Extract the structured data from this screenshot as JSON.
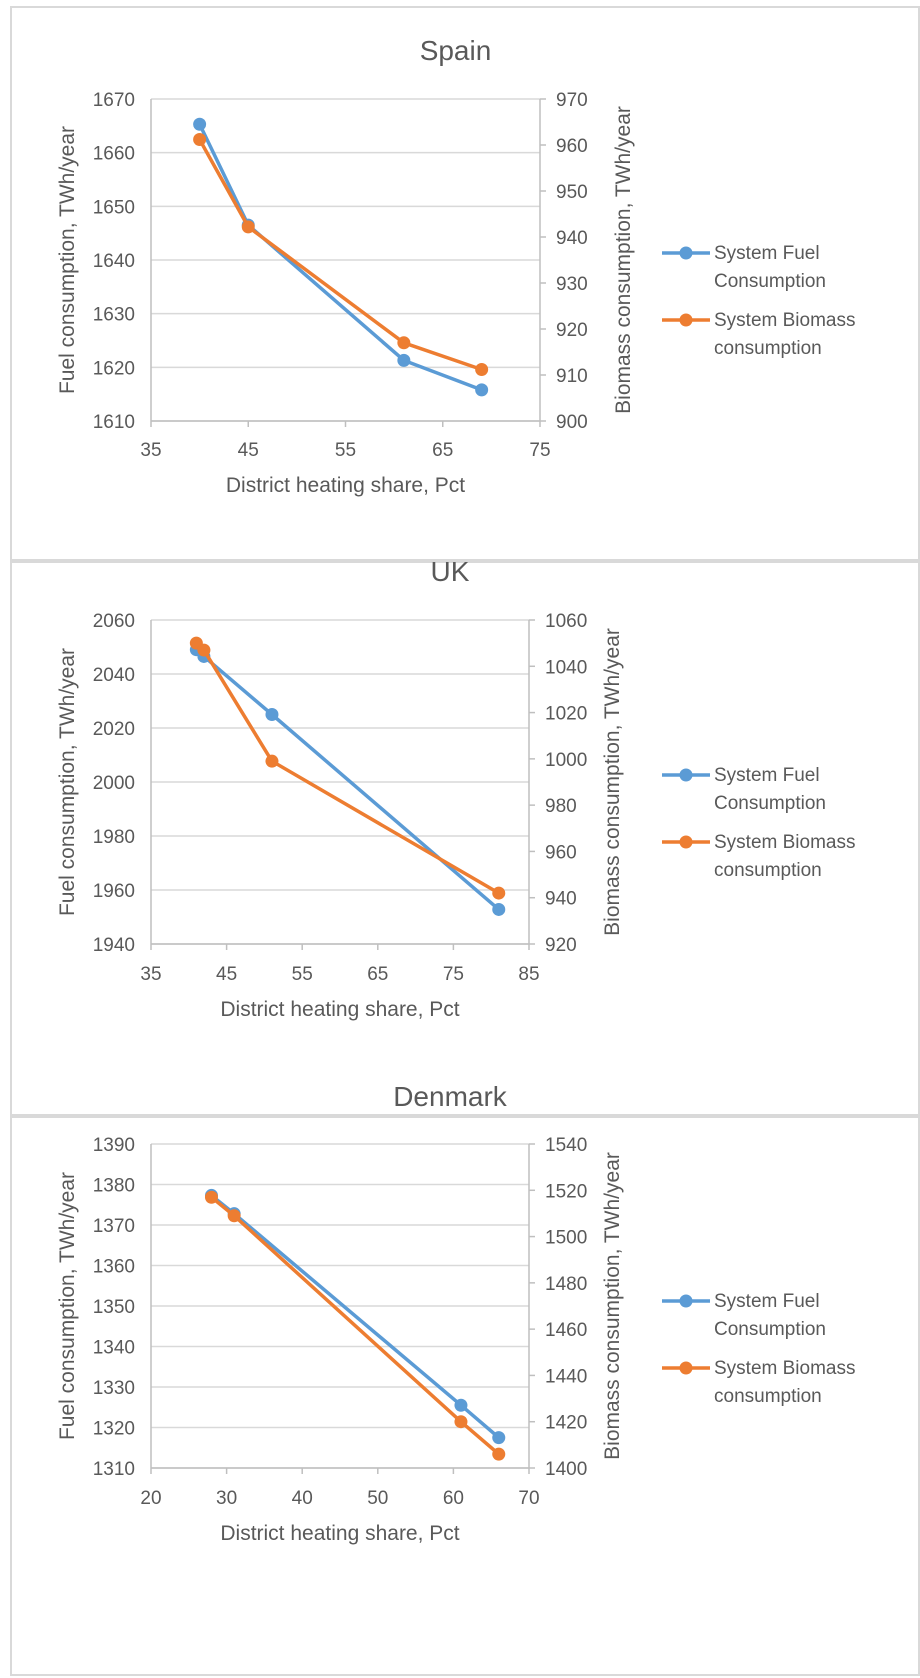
{
  "chart_data": [
    {
      "type": "line",
      "title": "Spain",
      "xlabel": "District heating share, Pct",
      "ylabel": "Fuel consumption, TWh/year",
      "y2label": "Biomass consumption, TWh/year",
      "xlim": [
        35,
        75
      ],
      "x_ticks": [
        "35",
        "45",
        "55",
        "65",
        "75"
      ],
      "ylim": [
        1610,
        1670
      ],
      "y_ticks": [
        "1610",
        "1620",
        "1630",
        "1640",
        "1650",
        "1660",
        "1670"
      ],
      "y2lim": [
        900,
        970
      ],
      "y2_ticks": [
        "900",
        "910",
        "920",
        "930",
        "940",
        "950",
        "960",
        "970"
      ],
      "grid": true,
      "legend": "right",
      "series": [
        {
          "name": "System Fuel Consumption",
          "color": "#5b9bd5",
          "axis": "left",
          "points": [
            [
              40,
              1665.3
            ],
            [
              45,
              1646.5
            ],
            [
              61,
              1621.3
            ],
            [
              69,
              1615.8
            ]
          ]
        },
        {
          "name": "System Biomass consumption",
          "color": "#ed7d31",
          "axis": "right",
          "points": [
            [
              40,
              961.2
            ],
            [
              45,
              942.2
            ],
            [
              61,
              917.0
            ],
            [
              69,
              911.2
            ]
          ]
        }
      ]
    },
    {
      "type": "line",
      "title": "UK",
      "xlabel": "District heating share, Pct",
      "ylabel": "Fuel consumption, TWh/year",
      "y2label": "Biomass consumption, TWh/year",
      "xlim": [
        35,
        85
      ],
      "x_ticks": [
        "35",
        "45",
        "55",
        "65",
        "75",
        "85"
      ],
      "ylim": [
        1940,
        2060
      ],
      "y_ticks": [
        "1940",
        "1960",
        "1980",
        "2000",
        "2020",
        "2040",
        "2060"
      ],
      "y2lim": [
        920,
        1060
      ],
      "y2_ticks": [
        "920",
        "940",
        "960",
        "980",
        "1000",
        "1020",
        "1040",
        "1060"
      ],
      "grid": true,
      "legend": "right",
      "series": [
        {
          "name": "System Fuel Consumption",
          "color": "#5b9bd5",
          "axis": "left",
          "points": [
            [
              41,
              2049
            ],
            [
              42,
              2046.5
            ],
            [
              51,
              2025
            ],
            [
              81,
              1952.8
            ]
          ]
        },
        {
          "name": "System Biomass consumption",
          "color": "#ed7d31",
          "axis": "right",
          "points": [
            [
              41,
              1050
            ],
            [
              42,
              1047
            ],
            [
              51,
              999
            ],
            [
              81,
              942
            ]
          ]
        }
      ]
    },
    {
      "type": "line",
      "title": "Denmark",
      "xlabel": "District heating share, Pct",
      "ylabel": "Fuel consumption, TWh/year",
      "y2label": "Biomass consumption, TWh/year",
      "xlim": [
        20,
        70
      ],
      "x_ticks": [
        "20",
        "30",
        "40",
        "50",
        "60",
        "70"
      ],
      "ylim": [
        1310,
        1390
      ],
      "y_ticks": [
        "1310",
        "1320",
        "1330",
        "1340",
        "1350",
        "1360",
        "1370",
        "1380",
        "1390"
      ],
      "y2lim": [
        1400,
        1540
      ],
      "y2_ticks": [
        "1400",
        "1420",
        "1440",
        "1460",
        "1480",
        "1500",
        "1520",
        "1540"
      ],
      "grid": true,
      "legend": "right",
      "series": [
        {
          "name": "System Fuel Consumption",
          "color": "#5b9bd5",
          "axis": "left",
          "points": [
            [
              28,
              1377.3
            ],
            [
              31,
              1372.8
            ],
            [
              61,
              1325.5
            ],
            [
              66,
              1317.5
            ]
          ]
        },
        {
          "name": "System Biomass consumption",
          "color": "#ed7d31",
          "axis": "right",
          "points": [
            [
              28,
              1517
            ],
            [
              31,
              1509
            ],
            [
              61,
              1420
            ],
            [
              66,
              1406
            ]
          ]
        }
      ]
    }
  ]
}
